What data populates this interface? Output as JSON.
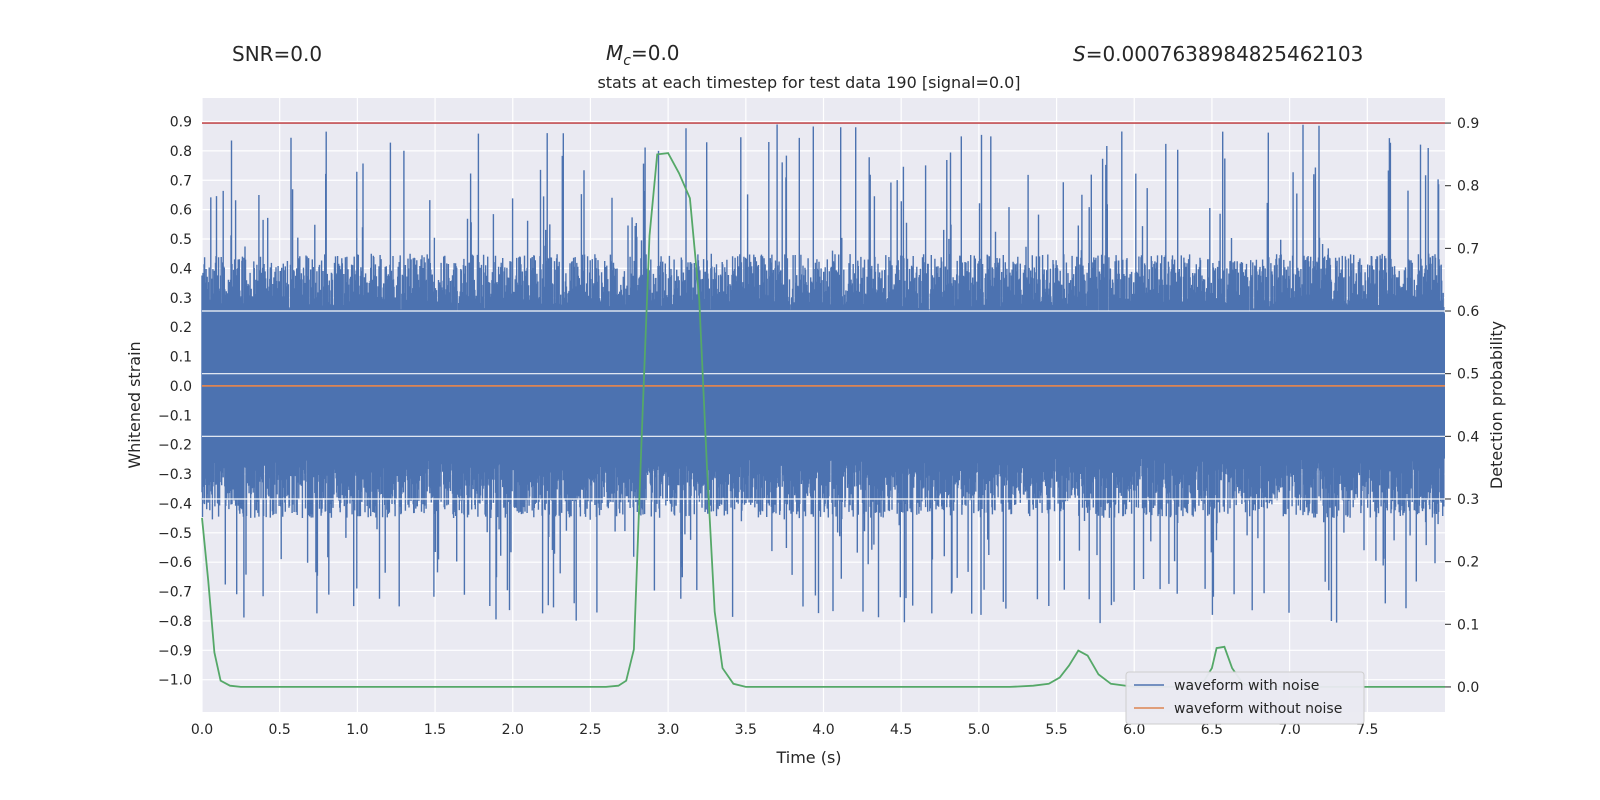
{
  "header": {
    "snr": "SNR=0.0",
    "mc_symbol": "M",
    "mc_sub": "c",
    "mc_value": "=0.0",
    "s_symbol": "S",
    "s_value": "=0.0007638984825462103"
  },
  "chart_data": {
    "type": "line",
    "title": "stats at each timestep for test data 190 [signal=0.0]",
    "xlabel": "Time (s)",
    "ylabel": "Whitened strain",
    "y2label": "Detection probability",
    "xlim": [
      0.0,
      8.0
    ],
    "ylim": [
      -1.11,
      0.98
    ],
    "y2lim": [
      -0.04,
      0.94
    ],
    "xticks": [
      0.0,
      0.5,
      1.0,
      1.5,
      2.0,
      2.5,
      3.0,
      3.5,
      4.0,
      4.5,
      5.0,
      5.5,
      6.0,
      6.5,
      7.0,
      7.5
    ],
    "xtick_labels": [
      "0.0",
      "0.5",
      "1.0",
      "1.5",
      "2.0",
      "2.5",
      "3.0",
      "3.5",
      "4.0",
      "4.5",
      "5.0",
      "5.5",
      "6.0",
      "6.5",
      "7.0",
      "7.5"
    ],
    "yticks": [
      0.9,
      0.8,
      0.7,
      0.6,
      0.5,
      0.4,
      0.3,
      0.2,
      0.1,
      0.0,
      -0.1,
      -0.2,
      -0.3,
      -0.4,
      -0.5,
      -0.6,
      -0.7,
      -0.8,
      -0.9,
      -1.0
    ],
    "ytick_labels": [
      "0.9",
      "0.8",
      "0.7",
      "0.6",
      "0.5",
      "0.4",
      "0.3",
      "0.2",
      "0.1",
      "0.0",
      "−0.1",
      "−0.2",
      "−0.3",
      "−0.4",
      "−0.5",
      "−0.6",
      "−0.7",
      "−0.8",
      "−0.9",
      "−1.0"
    ],
    "y2ticks": [
      0.9,
      0.8,
      0.7,
      0.6,
      0.5,
      0.4,
      0.3,
      0.2,
      0.1,
      0.0
    ],
    "y2tick_labels": [
      "0.9",
      "0.8",
      "0.7",
      "0.6",
      "0.5",
      "0.4",
      "0.3",
      "0.2",
      "0.1",
      "0.0"
    ],
    "threshold": {
      "value": 0.9,
      "axis": "right",
      "color": "#c44e52"
    },
    "legend_position": "lower-right",
    "series": [
      {
        "name": "waveform with noise",
        "axis": "left",
        "color": "#4c72b0",
        "kind": "noise",
        "band": [
          -0.45,
          0.45
        ],
        "peak_range": [
          -0.81,
          0.89
        ]
      },
      {
        "name": "waveform without noise",
        "axis": "left",
        "color": "#dd8452",
        "kind": "constant",
        "value": 0.0
      },
      {
        "name": "detection probability",
        "axis": "right",
        "color": "#55a868",
        "kind": "line",
        "x": [
          0.0,
          0.04,
          0.08,
          0.12,
          0.18,
          0.25,
          0.4,
          0.6,
          1.0,
          1.5,
          2.0,
          2.5,
          2.6,
          2.68,
          2.73,
          2.78,
          2.83,
          2.88,
          2.93,
          3.0,
          3.07,
          3.14,
          3.2,
          3.25,
          3.3,
          3.35,
          3.42,
          3.5,
          3.7,
          4.0,
          4.5,
          5.0,
          5.2,
          5.35,
          5.45,
          5.52,
          5.58,
          5.64,
          5.7,
          5.77,
          5.85,
          6.0,
          6.2,
          6.35,
          6.45,
          6.5,
          6.53,
          6.58,
          6.63,
          6.7,
          6.8,
          7.0,
          7.5,
          8.0
        ],
        "y": [
          0.27,
          0.17,
          0.055,
          0.01,
          0.002,
          0.0,
          0.0,
          0.0,
          0.0,
          0.0,
          0.0,
          0.0,
          0.0,
          0.002,
          0.01,
          0.06,
          0.4,
          0.72,
          0.85,
          0.852,
          0.82,
          0.78,
          0.62,
          0.35,
          0.12,
          0.03,
          0.005,
          0.0,
          0.0,
          0.0,
          0.0,
          0.0,
          0.0,
          0.002,
          0.005,
          0.015,
          0.034,
          0.058,
          0.05,
          0.02,
          0.005,
          0.0,
          0.0,
          0.0,
          0.01,
          0.03,
          0.062,
          0.064,
          0.03,
          0.005,
          0.0,
          0.0,
          0.0,
          0.0
        ]
      }
    ]
  }
}
